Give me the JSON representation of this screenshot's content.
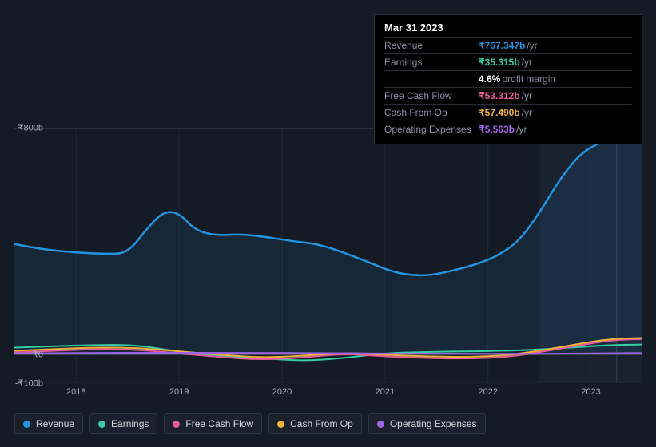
{
  "tooltip": {
    "date": "Mar 31 2023",
    "rows": [
      {
        "label": "Revenue",
        "value": "₹767.347b",
        "unit": "/yr",
        "color": "#2394df",
        "extra": null
      },
      {
        "label": "Earnings",
        "value": "₹35.315b",
        "unit": "/yr",
        "color": "#36cfa5",
        "extra": null
      },
      {
        "label": "",
        "value": "4.6%",
        "unit": "",
        "color": "#ffffff",
        "extra": "profit margin"
      },
      {
        "label": "Free Cash Flow",
        "value": "₹53.312b",
        "unit": "/yr",
        "color": "#e85b9d",
        "extra": null
      },
      {
        "label": "Cash From Op",
        "value": "₹57.490b",
        "unit": "/yr",
        "color": "#eeb23b",
        "extra": null
      },
      {
        "label": "Operating Expenses",
        "value": "₹5.563b",
        "unit": "/yr",
        "color": "#a064e8",
        "extra": null
      }
    ]
  },
  "chart": {
    "background": "#151b24",
    "grid_color": "#1f2732",
    "axis_color": "#3a4250",
    "highlight_band": {
      "from_year": 2022.5,
      "to_year": 2023.5,
      "color": "#1a2230"
    },
    "cursor_line": {
      "year": 2023.25,
      "color": "#3a4250"
    },
    "y": {
      "min": -100,
      "max": 800,
      "ticks": [
        {
          "v": 800,
          "label": "₹800b"
        },
        {
          "v": 0,
          "label": "₹0"
        },
        {
          "v": -100,
          "label": "-₹100b"
        }
      ]
    },
    "x": {
      "min": 2017.4,
      "max": 2023.5,
      "ticks": [
        2018,
        2019,
        2020,
        2021,
        2022,
        2023
      ]
    },
    "series": [
      {
        "name": "Revenue",
        "color": "#2394df",
        "width": 2.5,
        "fill": "rgba(35,148,223,0.10)",
        "fill_to": 0,
        "points": [
          [
            2017.4,
            390
          ],
          [
            2017.7,
            370
          ],
          [
            2018.0,
            360
          ],
          [
            2018.3,
            355
          ],
          [
            2018.5,
            358
          ],
          [
            2018.7,
            450
          ],
          [
            2018.85,
            505
          ],
          [
            2019.0,
            500
          ],
          [
            2019.15,
            440
          ],
          [
            2019.35,
            420
          ],
          [
            2019.6,
            425
          ],
          [
            2019.85,
            415
          ],
          [
            2020.1,
            400
          ],
          [
            2020.35,
            390
          ],
          [
            2020.6,
            360
          ],
          [
            2020.85,
            325
          ],
          [
            2021.05,
            295
          ],
          [
            2021.25,
            280
          ],
          [
            2021.45,
            280
          ],
          [
            2021.7,
            300
          ],
          [
            2021.9,
            320
          ],
          [
            2022.1,
            350
          ],
          [
            2022.3,
            400
          ],
          [
            2022.5,
            500
          ],
          [
            2022.7,
            620
          ],
          [
            2022.9,
            710
          ],
          [
            2023.1,
            750
          ],
          [
            2023.25,
            767
          ],
          [
            2023.4,
            780
          ],
          [
            2023.5,
            785
          ]
        ]
      },
      {
        "name": "Earnings",
        "color": "#36cfa5",
        "width": 2,
        "fill": null,
        "points": [
          [
            2017.4,
            25
          ],
          [
            2017.8,
            30
          ],
          [
            2018.2,
            35
          ],
          [
            2018.6,
            34
          ],
          [
            2019.0,
            10
          ],
          [
            2019.4,
            -3
          ],
          [
            2019.8,
            -12
          ],
          [
            2020.2,
            -22
          ],
          [
            2020.6,
            -12
          ],
          [
            2021.0,
            6
          ],
          [
            2021.4,
            10
          ],
          [
            2021.8,
            12
          ],
          [
            2022.2,
            14
          ],
          [
            2022.6,
            20
          ],
          [
            2023.0,
            30
          ],
          [
            2023.25,
            35
          ],
          [
            2023.5,
            36
          ]
        ]
      },
      {
        "name": "Free Cash Flow",
        "color": "#e85b9d",
        "width": 2,
        "fill": null,
        "points": [
          [
            2017.4,
            8
          ],
          [
            2017.8,
            14
          ],
          [
            2018.2,
            20
          ],
          [
            2018.6,
            18
          ],
          [
            2019.0,
            5
          ],
          [
            2019.4,
            -8
          ],
          [
            2019.8,
            -18
          ],
          [
            2020.2,
            -10
          ],
          [
            2020.6,
            4
          ],
          [
            2021.0,
            -6
          ],
          [
            2021.4,
            -12
          ],
          [
            2021.8,
            -14
          ],
          [
            2022.2,
            -8
          ],
          [
            2022.6,
            15
          ],
          [
            2023.0,
            40
          ],
          [
            2023.25,
            53
          ],
          [
            2023.5,
            55
          ]
        ]
      },
      {
        "name": "Cash From Op",
        "color": "#eeb23b",
        "width": 2,
        "fill": null,
        "points": [
          [
            2017.4,
            14
          ],
          [
            2017.8,
            20
          ],
          [
            2018.2,
            26
          ],
          [
            2018.6,
            24
          ],
          [
            2019.0,
            12
          ],
          [
            2019.4,
            0
          ],
          [
            2019.8,
            -10
          ],
          [
            2020.2,
            -4
          ],
          [
            2020.6,
            8
          ],
          [
            2021.0,
            0
          ],
          [
            2021.4,
            -6
          ],
          [
            2021.8,
            -8
          ],
          [
            2022.2,
            -2
          ],
          [
            2022.6,
            20
          ],
          [
            2023.0,
            46
          ],
          [
            2023.25,
            57
          ],
          [
            2023.5,
            59
          ]
        ]
      },
      {
        "name": "Operating Expenses",
        "color": "#a064e8",
        "width": 2,
        "fill": null,
        "points": [
          [
            2017.4,
            5
          ],
          [
            2018.0,
            6
          ],
          [
            2018.6,
            7
          ],
          [
            2019.2,
            7
          ],
          [
            2019.8,
            6
          ],
          [
            2020.4,
            6
          ],
          [
            2021.0,
            4
          ],
          [
            2021.6,
            4
          ],
          [
            2022.2,
            3
          ],
          [
            2022.8,
            4
          ],
          [
            2023.25,
            5.5
          ],
          [
            2023.5,
            6
          ]
        ]
      }
    ]
  },
  "legend": [
    {
      "label": "Revenue",
      "color": "#2394df"
    },
    {
      "label": "Earnings",
      "color": "#36cfa5"
    },
    {
      "label": "Free Cash Flow",
      "color": "#e85b9d"
    },
    {
      "label": "Cash From Op",
      "color": "#eeb23b"
    },
    {
      "label": "Operating Expenses",
      "color": "#a064e8"
    }
  ]
}
